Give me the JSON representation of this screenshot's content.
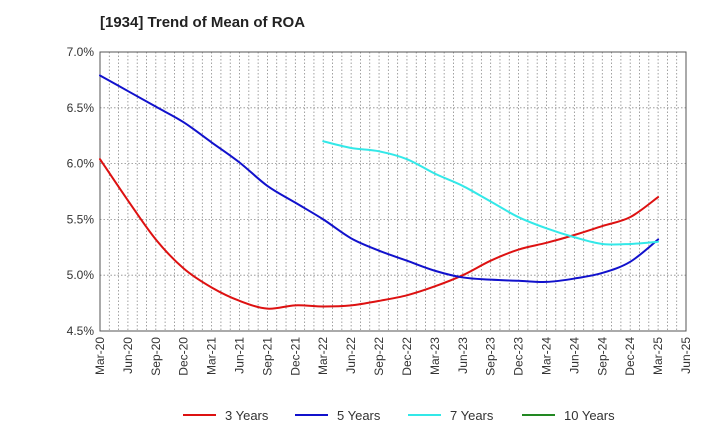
{
  "chart_data": {
    "type": "line",
    "title": "[1934]  Trend of Mean of ROA",
    "xlabel": "",
    "ylabel": "",
    "ylim": [
      4.5,
      7.0
    ],
    "y_ticks": [
      4.5,
      5.0,
      5.5,
      6.0,
      6.5,
      7.0
    ],
    "y_tick_labels": [
      "4.5%",
      "5.0%",
      "5.5%",
      "6.0%",
      "6.5%",
      "7.0%"
    ],
    "categories": [
      "Mar-20",
      "Jun-20",
      "Sep-20",
      "Dec-20",
      "Mar-21",
      "Jun-21",
      "Sep-21",
      "Dec-21",
      "Mar-22",
      "Jun-22",
      "Sep-22",
      "Dec-22",
      "Mar-23",
      "Jun-23",
      "Sep-23",
      "Dec-23",
      "Mar-24",
      "Jun-24",
      "Sep-24",
      "Dec-24",
      "Mar-25",
      "Jun-25"
    ],
    "grid": true,
    "legend_position": "bottom",
    "series": [
      {
        "name": "3 Years",
        "color": "#dd1111",
        "points": [
          [
            "Mar-20",
            6.04
          ],
          [
            "Jun-20",
            5.67
          ],
          [
            "Sep-20",
            5.32
          ],
          [
            "Dec-20",
            5.06
          ],
          [
            "Mar-21",
            4.89
          ],
          [
            "Jun-21",
            4.77
          ],
          [
            "Sep-21",
            4.7
          ],
          [
            "Dec-21",
            4.73
          ],
          [
            "Mar-22",
            4.72
          ],
          [
            "Jun-22",
            4.73
          ],
          [
            "Sep-22",
            4.77
          ],
          [
            "Dec-22",
            4.82
          ],
          [
            "Mar-23",
            4.9
          ],
          [
            "Jun-23",
            5.0
          ],
          [
            "Sep-23",
            5.13
          ],
          [
            "Dec-23",
            5.23
          ],
          [
            "Mar-24",
            5.29
          ],
          [
            "Jun-24",
            5.36
          ],
          [
            "Sep-24",
            5.44
          ],
          [
            "Dec-24",
            5.52
          ],
          [
            "Mar-25",
            5.7
          ]
        ]
      },
      {
        "name": "5 Years",
        "color": "#1111cc",
        "points": [
          [
            "Mar-20",
            6.79
          ],
          [
            "Jun-20",
            6.65
          ],
          [
            "Sep-20",
            6.51
          ],
          [
            "Dec-20",
            6.37
          ],
          [
            "Mar-21",
            6.19
          ],
          [
            "Jun-21",
            6.01
          ],
          [
            "Sep-21",
            5.8
          ],
          [
            "Dec-21",
            5.65
          ],
          [
            "Mar-22",
            5.5
          ],
          [
            "Jun-22",
            5.33
          ],
          [
            "Sep-22",
            5.22
          ],
          [
            "Dec-22",
            5.13
          ],
          [
            "Mar-23",
            5.04
          ],
          [
            "Jun-23",
            4.98
          ],
          [
            "Sep-23",
            4.96
          ],
          [
            "Dec-23",
            4.95
          ],
          [
            "Mar-24",
            4.94
          ],
          [
            "Jun-24",
            4.97
          ],
          [
            "Sep-24",
            5.02
          ],
          [
            "Dec-24",
            5.12
          ],
          [
            "Mar-25",
            5.32
          ]
        ]
      },
      {
        "name": "7 Years",
        "color": "#33e8e8",
        "points": [
          [
            "Mar-22",
            6.2
          ],
          [
            "Jun-22",
            6.14
          ],
          [
            "Sep-22",
            6.11
          ],
          [
            "Dec-22",
            6.04
          ],
          [
            "Mar-23",
            5.91
          ],
          [
            "Jun-23",
            5.8
          ],
          [
            "Sep-23",
            5.66
          ],
          [
            "Dec-23",
            5.52
          ],
          [
            "Mar-24",
            5.42
          ],
          [
            "Jun-24",
            5.34
          ],
          [
            "Sep-24",
            5.28
          ],
          [
            "Dec-24",
            5.28
          ],
          [
            "Mar-25",
            5.3
          ]
        ]
      },
      {
        "name": "10 Years",
        "color": "#228822",
        "points": []
      }
    ]
  }
}
